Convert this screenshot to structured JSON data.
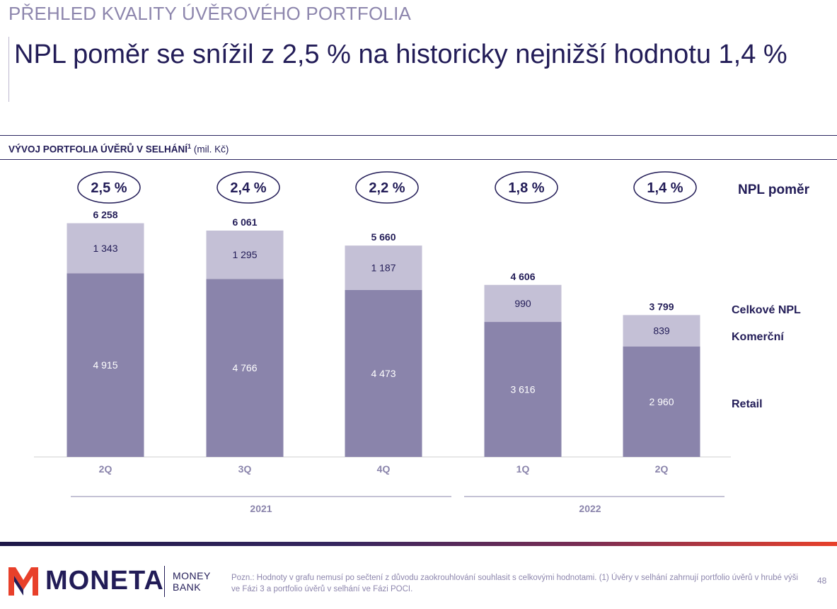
{
  "header": {
    "section": "PŘEHLED KVALITY ÚVĚROVÉHO PORTFOLIA",
    "headline": "NPL poměr se snížil z 2,5 % na historicky nejnižší hodnotu 1,4 %"
  },
  "chart_title": {
    "main": "VÝVOJ PORTFOLIA ÚVĚRŮ V SELHÁNÍ",
    "sup": "1",
    "unit": "(mil. Kč)"
  },
  "legend": {
    "npl_ratio": "NPL poměr",
    "total": "Celkové NPL",
    "commercial": "Komerční",
    "retail": "Retail"
  },
  "chart_data": {
    "type": "bar",
    "stacked": true,
    "categories": [
      "2Q",
      "3Q",
      "4Q",
      "1Q",
      "2Q"
    ],
    "groups": [
      {
        "label": "2021",
        "categories": [
          0,
          1,
          2
        ]
      },
      {
        "label": "2022",
        "categories": [
          3,
          4
        ]
      }
    ],
    "series": [
      {
        "name": "Retail",
        "values": [
          4915,
          4766,
          4473,
          3616,
          2960
        ],
        "labels": [
          "4 915",
          "4 766",
          "4 473",
          "3 616",
          "2 960"
        ],
        "color": "#8a84ab"
      },
      {
        "name": "Komerční",
        "values": [
          1343,
          1295,
          1187,
          990,
          839
        ],
        "labels": [
          "1 343",
          "1 295",
          "1 187",
          "990",
          "839"
        ],
        "color": "#c4c0d6"
      }
    ],
    "totals": [
      6258,
      6061,
      5660,
      4606,
      3799
    ],
    "total_labels": [
      "6 258",
      "6 061",
      "5 660",
      "4 606",
      "3 799"
    ],
    "npl_ratio_labels": [
      "2,5 %",
      "2,4 %",
      "2,2 %",
      "1,8 %",
      "1,4 %"
    ],
    "ylim": [
      0,
      7000
    ],
    "colors": {
      "retail": "#8a84ab",
      "commercial": "#c4c0d6",
      "text_dark": "#221c57",
      "axis": "#cfcfcf"
    }
  },
  "footer": {
    "logo": "MONETA",
    "logo_sub_1": "MONEY",
    "logo_sub_2": "BANK",
    "note": "Pozn.: Hodnoty v grafu nemusí po sečtení z důvodu zaokrouhlování souhlasit s celkovými hodnotami. (1) Úvěry v selhání zahrnují portfolio úvěrů v hrubé výši ve Fázi 3 a portfolio úvěrů v selhání ve Fázi POCI.",
    "page": "48"
  }
}
